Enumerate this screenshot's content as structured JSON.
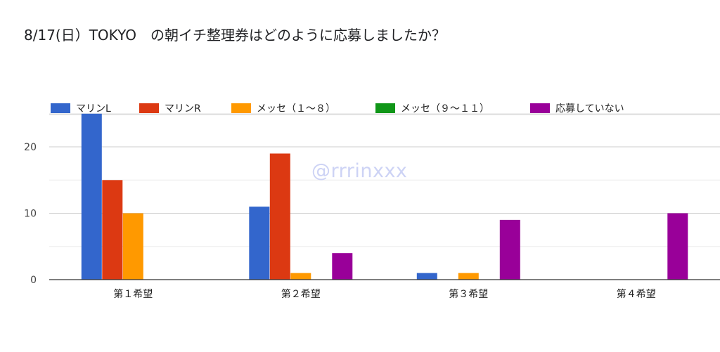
{
  "title": "8/17(日）TOKYO　の朝イチ整理券はどのように応募しましたか？",
  "watermark": "@rrrinxxx",
  "colors": {
    "マリンL": "#3366cc",
    "マリンR": "#dc3912",
    "メッセ（１〜８）": "#ff9900",
    "メッセ（９〜１１）": "#109618",
    "応募していない": "#990099"
  },
  "chart_data": {
    "type": "bar",
    "title": "8/17(日）TOKYO　の朝イチ整理券はどのように応募しましたか？",
    "categories": [
      "第１希望",
      "第２希望",
      "第３希望",
      "第４希望"
    ],
    "series": [
      {
        "name": "マリンL",
        "color": "#3366cc",
        "values": [
          25,
          11,
          1,
          0
        ]
      },
      {
        "name": "マリンR",
        "color": "#dc3912",
        "values": [
          15,
          19,
          0,
          0
        ]
      },
      {
        "name": "メッセ（１〜８）",
        "color": "#ff9900",
        "values": [
          10,
          1,
          1,
          0
        ]
      },
      {
        "name": "メッセ（９〜１１）",
        "color": "#109618",
        "values": [
          0,
          0,
          0,
          0
        ]
      },
      {
        "name": "応募していない",
        "color": "#990099",
        "values": [
          0,
          4,
          9,
          10
        ]
      }
    ],
    "yticks": [
      0,
      10,
      20
    ],
    "ylim": [
      0,
      25
    ],
    "grid": true,
    "legend_position": "top"
  }
}
